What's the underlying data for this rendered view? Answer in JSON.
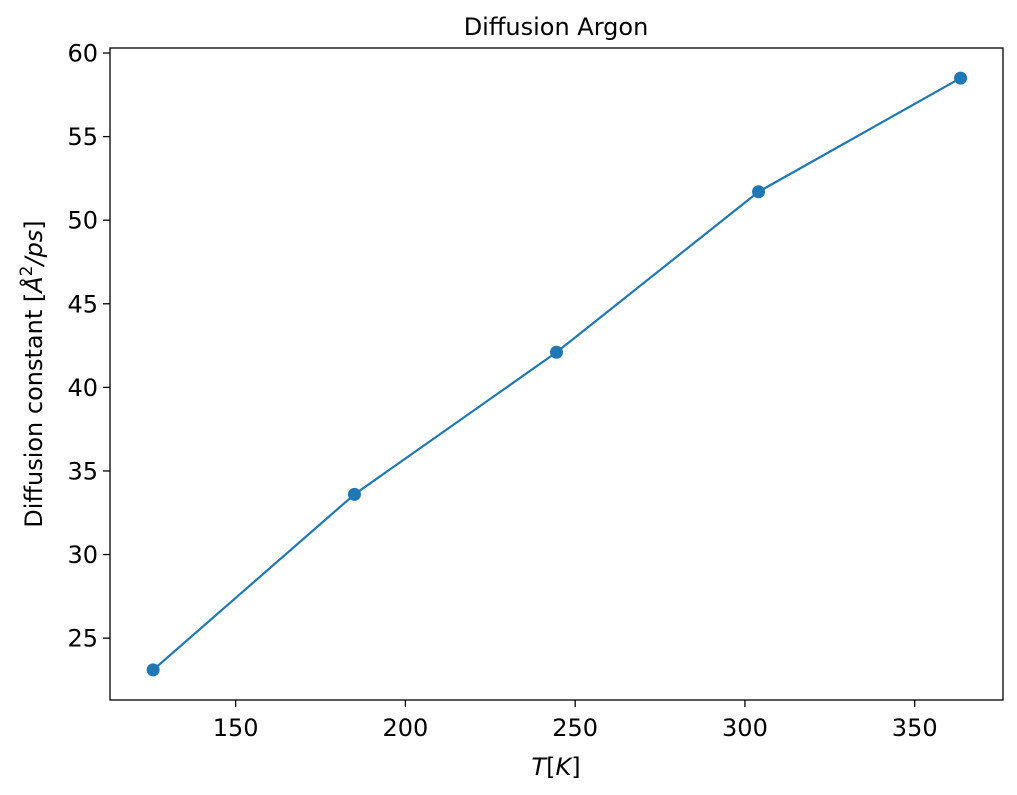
{
  "colors": {
    "series": "#1f77b4",
    "axis": "#000000",
    "background": "#ffffff"
  },
  "chart_data": {
    "type": "line",
    "title": "Diffusion Argon",
    "xlabel": {
      "prefix": "",
      "italic_part": "T",
      "bracket_open": "[",
      "unit_italic": "K",
      "bracket_close": "]"
    },
    "ylabel": {
      "prefix": "Diffusion constant [",
      "unit_base": "Å",
      "unit_sup": "2",
      "unit_rest": "/ps",
      "suffix": "]"
    },
    "x": [
      125.7,
      185.0,
      244.5,
      304.0,
      363.5
    ],
    "series": [
      {
        "values": [
          23.1,
          33.6,
          42.1,
          51.7,
          58.5
        ],
        "marker": "circle"
      }
    ],
    "xlim": [
      113,
      376
    ],
    "ylim": [
      21.3,
      60.3
    ],
    "xticks": [
      150,
      200,
      250,
      300,
      350
    ],
    "yticks": [
      25,
      30,
      35,
      40,
      45,
      50,
      55,
      60
    ],
    "xtick_labels": [
      "150",
      "200",
      "250",
      "300",
      "350"
    ],
    "ytick_labels": [
      "25",
      "30",
      "35",
      "40",
      "45",
      "50",
      "55",
      "60"
    ],
    "grid": false,
    "legend": "none"
  }
}
